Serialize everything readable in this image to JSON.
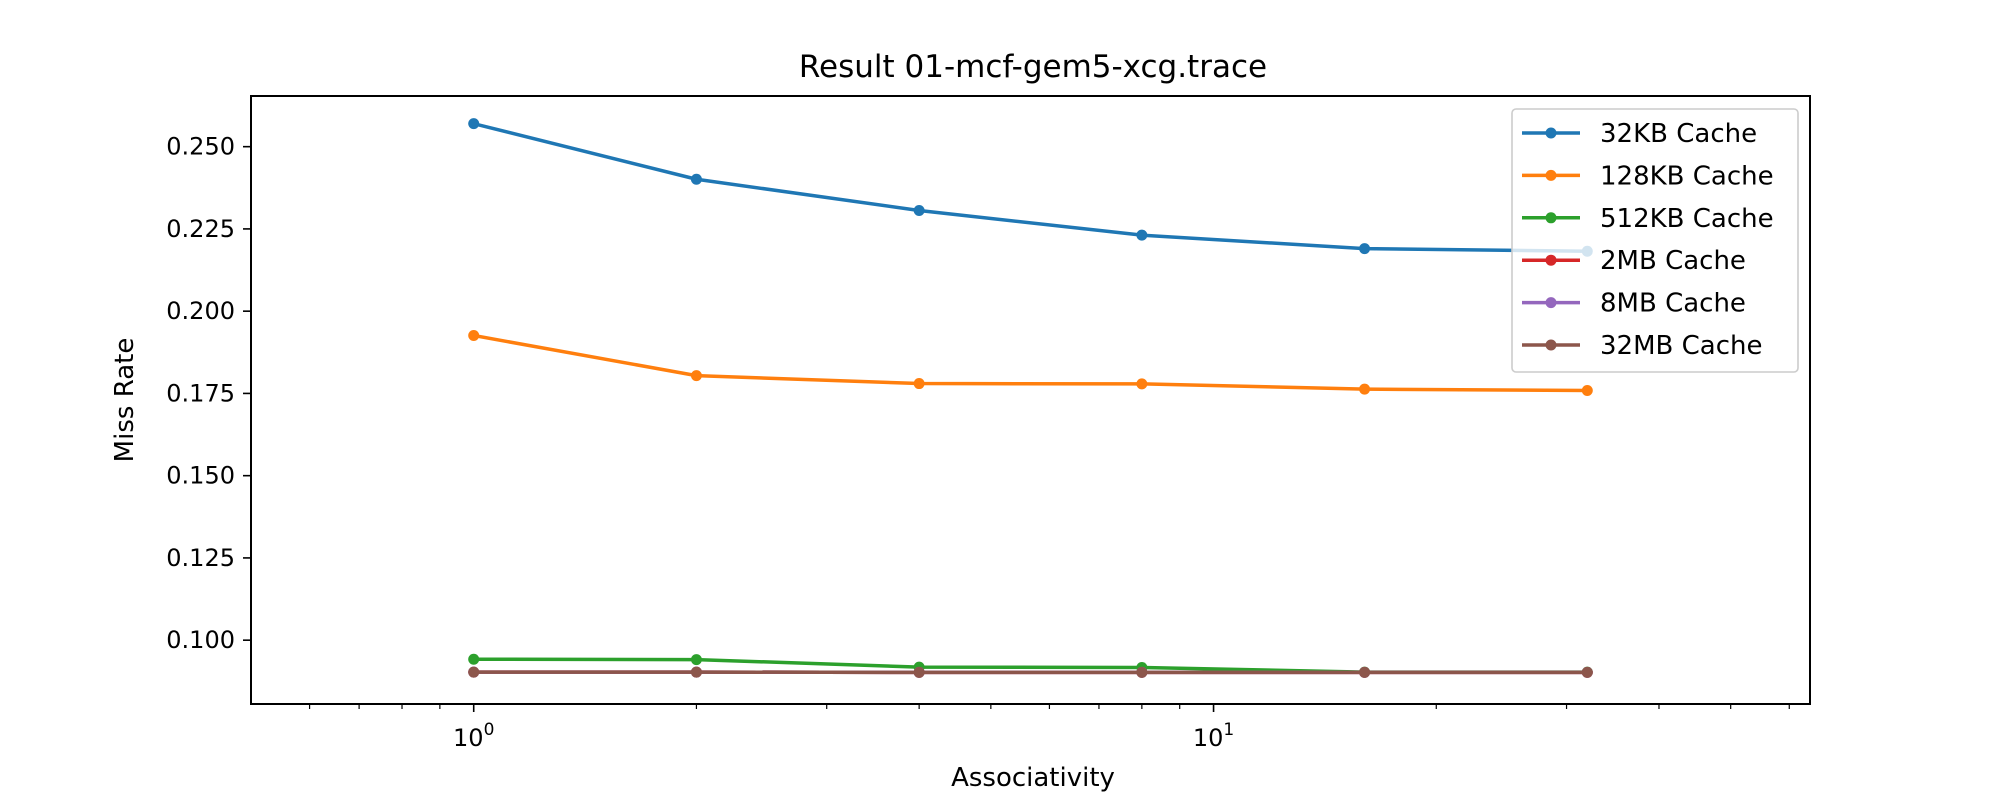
{
  "chart_data": {
    "type": "line",
    "title": "Result 01-mcf-gem5-xcg.trace",
    "xlabel": "Associativity",
    "ylabel": "Miss Rate",
    "x_scale": "log",
    "x": [
      1,
      2,
      4,
      8,
      16,
      32
    ],
    "xlim": [
      0.5,
      64
    ],
    "ylim": [
      0.0806,
      0.2654
    ],
    "x_ticks": [
      {
        "value": 1,
        "base": "10",
        "exp": "0"
      },
      {
        "value": 10,
        "base": "10",
        "exp": "1"
      }
    ],
    "y_ticks": [
      {
        "value": 0.1,
        "label": "0.100"
      },
      {
        "value": 0.125,
        "label": "0.125"
      },
      {
        "value": 0.15,
        "label": "0.150"
      },
      {
        "value": 0.175,
        "label": "0.175"
      },
      {
        "value": 0.2,
        "label": "0.200"
      },
      {
        "value": 0.225,
        "label": "0.225"
      },
      {
        "value": 0.25,
        "label": "0.250"
      }
    ],
    "grid": false,
    "legend_position": "top-right",
    "series": [
      {
        "name": "32KB Cache",
        "color": "#1f77b4",
        "values": [
          0.257,
          0.2401,
          0.2306,
          0.2231,
          0.219,
          0.2182
        ]
      },
      {
        "name": "128KB Cache",
        "color": "#ff7f0e",
        "values": [
          0.1926,
          0.1804,
          0.178,
          0.1779,
          0.1763,
          0.1759
        ]
      },
      {
        "name": "512KB Cache",
        "color": "#2ca02c",
        "values": [
          0.0942,
          0.0941,
          0.0918,
          0.0917,
          0.0903,
          0.0903
        ]
      },
      {
        "name": "2MB Cache",
        "color": "#d62728",
        "values": [
          0.0903,
          0.0903,
          0.0902,
          0.0902,
          0.0902,
          0.0902
        ]
      },
      {
        "name": "8MB Cache",
        "color": "#9467bd",
        "values": [
          0.0903,
          0.0903,
          0.0902,
          0.0902,
          0.0902,
          0.0902
        ]
      },
      {
        "name": "32MB Cache",
        "color": "#8c564b",
        "values": [
          0.0903,
          0.0903,
          0.0902,
          0.0902,
          0.0902,
          0.0902
        ]
      }
    ]
  }
}
